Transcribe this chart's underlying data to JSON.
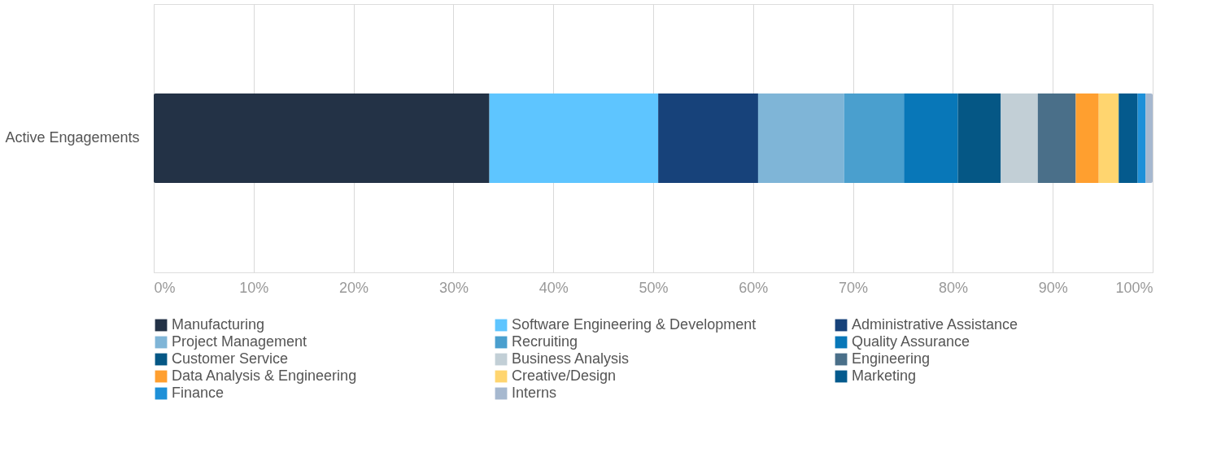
{
  "chart_data": {
    "type": "bar",
    "orientation": "horizontal",
    "stacked": true,
    "categories": [
      "Active Engagements"
    ],
    "series": [
      {
        "name": "Manufacturing",
        "color": "#233246",
        "values": [
          33.6
        ]
      },
      {
        "name": "Software Engineering & Development",
        "color": "#5ec5ff",
        "values": [
          16.9
        ]
      },
      {
        "name": "Administrative Assistance",
        "color": "#17427a",
        "values": [
          10.0
        ]
      },
      {
        "name": "Project Management",
        "color": "#7fb5d7",
        "values": [
          8.6
        ]
      },
      {
        "name": "Recruiting",
        "color": "#4a9fce",
        "values": [
          6.0
        ]
      },
      {
        "name": "Quality Assurance",
        "color": "#0877b8",
        "values": [
          5.4
        ]
      },
      {
        "name": "Customer Service",
        "color": "#055785",
        "values": [
          4.3
        ]
      },
      {
        "name": "Business Analysis",
        "color": "#c2cfd6",
        "values": [
          3.7
        ]
      },
      {
        "name": "Engineering",
        "color": "#4a6f89",
        "values": [
          3.8
        ]
      },
      {
        "name": "Data Analysis & Engineering",
        "color": "#ff9f2f",
        "values": [
          2.3
        ]
      },
      {
        "name": "Creative/Design",
        "color": "#ffd56f",
        "values": [
          2.0
        ]
      },
      {
        "name": "Marketing",
        "color": "#045a8d",
        "values": [
          1.9
        ]
      },
      {
        "name": "Finance",
        "color": "#1e90d8",
        "values": [
          0.8
        ]
      },
      {
        "name": "Interns",
        "color": "#a6b8cf",
        "values": [
          0.7
        ]
      }
    ],
    "xlim": [
      0,
      100
    ],
    "xticks": [
      {
        "value": 0,
        "label": "0%"
      },
      {
        "value": 10,
        "label": "10%"
      },
      {
        "value": 20,
        "label": "20%"
      },
      {
        "value": 30,
        "label": "30%"
      },
      {
        "value": 40,
        "label": "40%"
      },
      {
        "value": 50,
        "label": "50%"
      },
      {
        "value": 60,
        "label": "60%"
      },
      {
        "value": 70,
        "label": "70%"
      },
      {
        "value": 80,
        "label": "80%"
      },
      {
        "value": 90,
        "label": "90%"
      },
      {
        "value": 100,
        "label": "100%"
      }
    ],
    "grid": "x",
    "legend": "bottom"
  }
}
